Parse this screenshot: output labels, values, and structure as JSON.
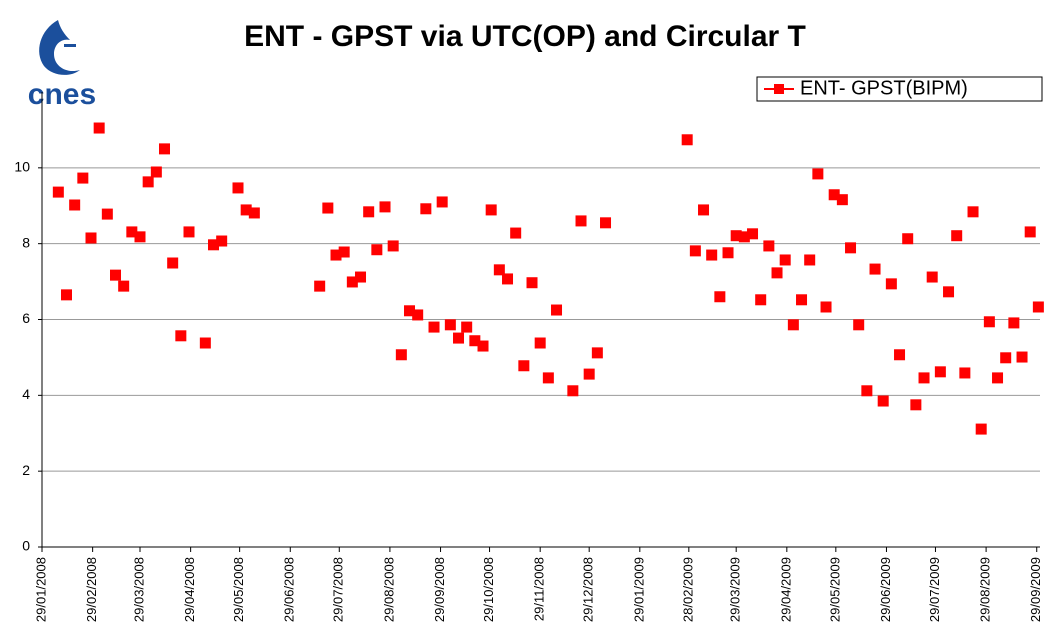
{
  "chart_data": {
    "type": "scatter",
    "title": "ENT - GPST via UTC(OP) and Circular T",
    "logo": "cnes",
    "x": [
      "2008-02-08",
      "2008-02-13",
      "2008-02-18",
      "2008-02-23",
      "2008-02-28",
      "2008-03-04",
      "2008-03-09",
      "2008-03-14",
      "2008-03-19",
      "2008-03-24",
      "2008-03-29",
      "2008-04-03",
      "2008-04-08",
      "2008-04-13",
      "2008-04-18",
      "2008-04-23",
      "2008-04-28",
      "2008-05-08",
      "2008-05-13",
      "2008-05-18",
      "2008-05-28",
      "2008-06-02",
      "2008-06-07",
      "2008-07-17",
      "2008-07-22",
      "2008-07-27",
      "2008-08-01",
      "2008-08-06",
      "2008-08-11",
      "2008-08-16",
      "2008-08-21",
      "2008-08-26",
      "2008-08-31",
      "2008-09-05",
      "2008-09-10",
      "2008-09-15",
      "2008-09-20",
      "2008-09-25",
      "2008-09-30",
      "2008-10-05",
      "2008-10-10",
      "2008-10-15",
      "2008-10-20",
      "2008-10-25",
      "2008-10-30",
      "2008-11-04",
      "2008-11-09",
      "2008-11-14",
      "2008-11-19",
      "2008-11-24",
      "2008-11-29",
      "2008-12-04",
      "2008-12-09",
      "2008-12-19",
      "2008-12-24",
      "2008-12-29",
      "2009-01-03",
      "2009-01-08",
      "2009-02-27",
      "2009-03-04",
      "2009-03-09",
      "2009-03-14",
      "2009-03-19",
      "2009-03-24",
      "2009-03-29",
      "2009-04-03",
      "2009-04-08",
      "2009-04-13",
      "2009-04-18",
      "2009-04-23",
      "2009-04-28",
      "2009-05-03",
      "2009-05-08",
      "2009-05-13",
      "2009-05-18",
      "2009-05-23",
      "2009-05-28",
      "2009-06-02",
      "2009-06-07",
      "2009-06-12",
      "2009-06-17",
      "2009-06-22",
      "2009-06-27",
      "2009-07-02",
      "2009-07-07",
      "2009-07-12",
      "2009-07-17",
      "2009-07-22",
      "2009-07-27",
      "2009-08-01",
      "2009-08-06",
      "2009-08-11",
      "2009-08-16",
      "2009-08-21",
      "2009-08-26",
      "2009-08-31",
      "2009-09-05",
      "2009-09-10",
      "2009-09-15",
      "2009-09-20",
      "2009-09-25",
      "2009-09-30"
    ],
    "series": [
      {
        "name": "ENT- GPST(BIPM)",
        "color": "#ff0000",
        "values": [
          9.36,
          6.65,
          9.02,
          9.73,
          8.15,
          11.05,
          8.78,
          7.17,
          6.88,
          8.31,
          8.18,
          9.63,
          9.89,
          10.5,
          7.49,
          5.57,
          8.31,
          5.38,
          7.97,
          8.07,
          9.47,
          8.89,
          8.81,
          6.88,
          8.94,
          7.7,
          7.78,
          6.99,
          7.12,
          8.84,
          7.84,
          8.97,
          7.94,
          5.07,
          6.23,
          6.12,
          8.92,
          5.8,
          9.1,
          5.86,
          5.51,
          5.8,
          5.44,
          5.3,
          8.89,
          7.31,
          7.07,
          8.28,
          4.78,
          6.97,
          5.38,
          4.46,
          6.25,
          4.12,
          8.6,
          4.56,
          5.12,
          8.55,
          10.74,
          7.81,
          8.89,
          7.7,
          6.6,
          7.76,
          8.21,
          8.18,
          8.26,
          6.52,
          7.94,
          7.23,
          7.57,
          5.86,
          6.52,
          7.57,
          9.84,
          6.33,
          9.29,
          9.16,
          7.89,
          5.86,
          4.12,
          7.33,
          3.85,
          6.94,
          5.07,
          8.13,
          3.75,
          4.46,
          7.12,
          4.62,
          6.73,
          8.21,
          4.59,
          8.84,
          3.11,
          5.94,
          4.46,
          4.99,
          5.91,
          5.01,
          8.31,
          6.33
        ]
      }
    ],
    "xlim": [
      "2008-01-29",
      "2009-10-01"
    ],
    "xticks": [
      {
        "value": "2008-01-29",
        "label": "29/01/2008"
      },
      {
        "value": "2008-02-29",
        "label": "29/02/2008"
      },
      {
        "value": "2008-03-29",
        "label": "29/03/2008"
      },
      {
        "value": "2008-04-29",
        "label": "29/04/2008"
      },
      {
        "value": "2008-05-29",
        "label": "29/05/2008"
      },
      {
        "value": "2008-06-29",
        "label": "29/06/2008"
      },
      {
        "value": "2008-07-29",
        "label": "29/07/2008"
      },
      {
        "value": "2008-08-29",
        "label": "29/08/2008"
      },
      {
        "value": "2008-09-29",
        "label": "29/09/2008"
      },
      {
        "value": "2008-10-29",
        "label": "29/10/2008"
      },
      {
        "value": "2008-11-29",
        "label": "29/11/2008"
      },
      {
        "value": "2008-12-29",
        "label": "29/12/2008"
      },
      {
        "value": "2009-01-29",
        "label": "29/01/2009"
      },
      {
        "value": "2009-02-28",
        "label": "28/02/2009"
      },
      {
        "value": "2009-03-29",
        "label": "29/03/2009"
      },
      {
        "value": "2009-04-29",
        "label": "29/04/2009"
      },
      {
        "value": "2009-05-29",
        "label": "29/05/2009"
      },
      {
        "value": "2009-06-29",
        "label": "29/06/2009"
      },
      {
        "value": "2009-07-29",
        "label": "29/07/2009"
      },
      {
        "value": "2009-08-29",
        "label": "29/08/2009"
      },
      {
        "value": "2009-09-29",
        "label": "29/09/2009"
      }
    ],
    "ylim": [
      0,
      12
    ],
    "yticks": [
      0,
      2,
      4,
      6,
      8,
      10
    ],
    "grid": true,
    "legend": "top-right"
  }
}
